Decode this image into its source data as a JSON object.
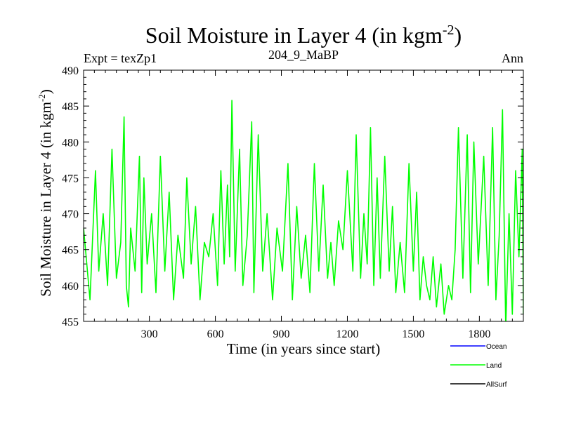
{
  "chart_data": {
    "type": "line",
    "title": "Soil Moisture in Layer 4 (in kgm",
    "title_sup": "-2",
    "title_close": ")",
    "subtitle_left": "Expt = texZp1",
    "subtitle_center": "204_9_MaBP",
    "subtitle_right": "Ann",
    "xlabel": "Time (in years since start)",
    "ylabel": "Soil Moisture in Layer 4 (in kgm",
    "ylabel_sup": "-2",
    "ylabel_close": ")",
    "xlim": [
      1,
      2000
    ],
    "ylim": [
      455,
      490
    ],
    "xticks": [
      300,
      600,
      900,
      1200,
      1500,
      1800
    ],
    "yticks": [
      455,
      460,
      465,
      470,
      475,
      480,
      485,
      490
    ],
    "series": [
      {
        "name": "Ocean",
        "color": "#0000ff",
        "x": [],
        "values": []
      },
      {
        "name": "Land",
        "color": "#00ff00",
        "x": [
          1,
          30,
          55,
          70,
          90,
          110,
          130,
          150,
          170,
          185,
          195,
          205,
          215,
          235,
          255,
          265,
          275,
          290,
          310,
          330,
          350,
          370,
          390,
          410,
          430,
          455,
          470,
          490,
          510,
          530,
          550,
          570,
          590,
          610,
          625,
          640,
          655,
          665,
          675,
          690,
          710,
          725,
          745,
          765,
          775,
          795,
          815,
          835,
          860,
          880,
          905,
          930,
          950,
          970,
          990,
          1010,
          1030,
          1050,
          1070,
          1090,
          1110,
          1125,
          1140,
          1160,
          1180,
          1200,
          1225,
          1240,
          1260,
          1275,
          1290,
          1305,
          1320,
          1335,
          1350,
          1370,
          1390,
          1405,
          1420,
          1440,
          1460,
          1480,
          1500,
          1515,
          1530,
          1545,
          1560,
          1575,
          1590,
          1605,
          1625,
          1640,
          1660,
          1675,
          1690,
          1705,
          1725,
          1745,
          1760,
          1775,
          1795,
          1820,
          1840,
          1860,
          1875,
          1890,
          1905,
          1920,
          1935,
          1950,
          1965,
          1980,
          1995,
          2000
        ],
        "values": [
          468,
          458,
          476,
          462,
          470,
          460,
          479,
          461,
          466,
          483.5,
          460,
          457,
          468,
          462,
          478,
          459,
          475,
          463,
          470,
          459,
          478,
          462,
          473,
          458,
          467,
          461,
          475,
          463,
          471,
          458,
          466,
          464,
          470,
          460,
          476,
          463,
          474,
          464,
          485.8,
          462,
          479,
          460,
          467,
          482.8,
          459,
          481,
          462,
          470,
          458,
          468,
          462,
          477,
          458,
          471,
          461,
          467,
          459,
          477,
          462,
          474,
          461,
          466,
          460,
          469,
          465,
          476,
          462,
          481,
          461,
          470,
          463,
          482,
          460,
          475,
          461,
          478,
          462,
          471,
          459,
          466,
          459,
          477,
          462,
          473,
          458,
          464,
          460,
          458,
          464,
          457,
          463,
          456,
          460,
          458,
          465,
          482,
          461,
          481,
          459,
          480,
          463,
          478,
          460,
          482,
          458,
          467,
          484.5,
          454,
          470,
          456,
          476,
          464,
          479,
          456
        ]
      },
      {
        "name": "AllSurf",
        "color": "#000000",
        "x": [],
        "values": []
      }
    ],
    "legend": {
      "placement": "bottom-right"
    }
  }
}
